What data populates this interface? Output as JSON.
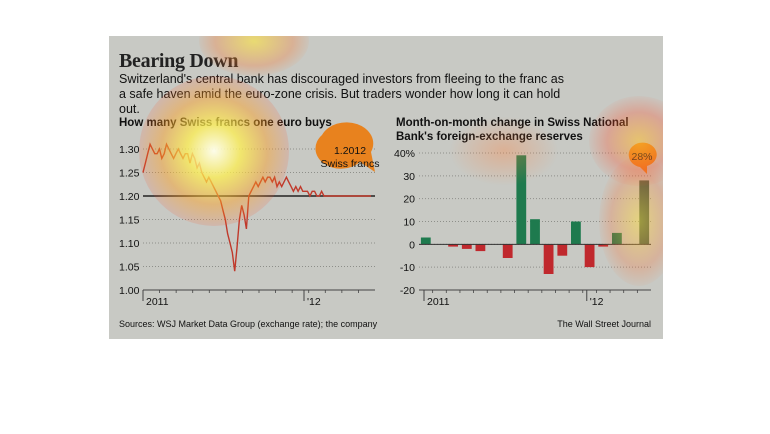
{
  "headline": "Bearing Down",
  "dek": "Switzerland's central bank has discouraged investors from fleeing to the franc as a safe haven amid the euro-zone crisis. But traders wonder how long it can hold out.",
  "source": "Sources: WSJ Market Data Group (exchange rate); the company",
  "credit": "The Wall Street Journal",
  "colors": {
    "panel": "#c8c9c4",
    "line": "#c0392b",
    "floor": "#222222",
    "callout": "#e8821e",
    "positive": "#1e7a4e",
    "negative": "#c0282d"
  },
  "chart_data": [
    {
      "type": "line",
      "title": "How many Swiss francs one euro buys",
      "ylim": [
        1.0,
        1.3
      ],
      "yticks": [
        "1.30",
        "1.25",
        "1.20",
        "1.15",
        "1.10",
        "1.05",
        "1.00"
      ],
      "xticks": [
        "2011",
        "'12"
      ],
      "callout": {
        "value": "1.2012",
        "label": "Swiss francs"
      },
      "reference_line": 1.2,
      "x": [
        0,
        2,
        4,
        6,
        8,
        10,
        12,
        14,
        16,
        18,
        20,
        22,
        24,
        26,
        28,
        30,
        32,
        34,
        36,
        38,
        40,
        42,
        44,
        46,
        48,
        50,
        52,
        54,
        56,
        58,
        60,
        62,
        64,
        66,
        68,
        70,
        72,
        74,
        76,
        78,
        80,
        82,
        84,
        86,
        88,
        90,
        92,
        94,
        96,
        98,
        100,
        102,
        104,
        106,
        108,
        110,
        112,
        114,
        116,
        118,
        120,
        122,
        124,
        126,
        128,
        130,
        132,
        134,
        136,
        138,
        140,
        142,
        144,
        146,
        148,
        150,
        152,
        154,
        156,
        158,
        160,
        162,
        164,
        166,
        168,
        170,
        172,
        174,
        176,
        178,
        180,
        182,
        184,
        186,
        188,
        190,
        192,
        194
      ],
      "values": [
        1.25,
        1.27,
        1.29,
        1.31,
        1.3,
        1.29,
        1.29,
        1.3,
        1.28,
        1.29,
        1.31,
        1.3,
        1.29,
        1.28,
        1.29,
        1.3,
        1.29,
        1.28,
        1.29,
        1.29,
        1.27,
        1.29,
        1.28,
        1.26,
        1.27,
        1.25,
        1.24,
        1.23,
        1.24,
        1.23,
        1.22,
        1.21,
        1.2,
        1.19,
        1.17,
        1.15,
        1.12,
        1.1,
        1.08,
        1.04,
        1.09,
        1.15,
        1.18,
        1.16,
        1.13,
        1.2,
        1.21,
        1.22,
        1.23,
        1.22,
        1.23,
        1.24,
        1.23,
        1.24,
        1.24,
        1.23,
        1.24,
        1.22,
        1.23,
        1.22,
        1.23,
        1.24,
        1.23,
        1.22,
        1.21,
        1.22,
        1.21,
        1.22,
        1.21,
        1.21,
        1.21,
        1.2,
        1.21,
        1.21,
        1.2,
        1.2,
        1.21,
        1.2,
        1.2,
        1.2,
        1.2,
        1.2,
        1.2,
        1.2,
        1.2,
        1.2,
        1.2,
        1.2,
        1.2,
        1.2,
        1.2,
        1.2,
        1.2,
        1.2,
        1.2,
        1.2,
        1.2,
        1.2
      ]
    },
    {
      "type": "bar",
      "title": "Month-on-month change in Swiss National Bank's foreign-exchange reserves",
      "ylim": [
        -20,
        40
      ],
      "yticks": [
        "40%",
        "30",
        "20",
        "10",
        "0",
        "-10",
        "-20"
      ],
      "xticks": [
        "2011",
        "'12"
      ],
      "callout": {
        "value": "28%"
      },
      "values": [
        3,
        0,
        -1,
        -2,
        -3,
        0,
        -6,
        39,
        11,
        -13,
        -5,
        10,
        -10,
        -1,
        5,
        0,
        28
      ]
    }
  ]
}
